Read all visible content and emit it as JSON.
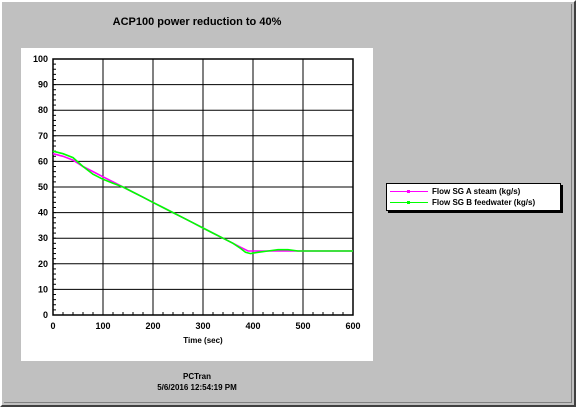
{
  "title": "ACP100 power reduction to 40%",
  "footer": {
    "line1": "PCTran",
    "line2": "5/6/2016 12:54:19 PM"
  },
  "chart_data": {
    "type": "line",
    "title": "ACP100 power reduction to 40%",
    "xlabel": "Time (sec)",
    "ylabel": "",
    "xlim": [
      0,
      600
    ],
    "ylim": [
      0,
      100
    ],
    "xticks": [
      0,
      100,
      200,
      300,
      400,
      500,
      600
    ],
    "yticks": [
      0,
      10,
      20,
      30,
      40,
      50,
      60,
      70,
      80,
      90,
      100
    ],
    "grid": true,
    "legend_position": "right",
    "series": [
      {
        "name": "Flow SG A steam (kg/s)",
        "color": "#ff00ff",
        "x": [
          0,
          20,
          40,
          60,
          80,
          100,
          120,
          140,
          160,
          180,
          200,
          220,
          240,
          260,
          280,
          300,
          320,
          340,
          360,
          375,
          390,
          405,
          420,
          440,
          460,
          480,
          500,
          520,
          540,
          560,
          580,
          600
        ],
        "values": [
          63,
          62,
          60.5,
          58,
          56,
          54,
          52,
          50,
          48,
          46,
          44,
          42,
          40,
          38,
          36,
          34,
          32,
          30,
          28,
          26.5,
          25,
          25,
          25,
          25,
          25,
          25,
          25,
          25,
          25,
          25,
          25,
          25
        ]
      },
      {
        "name": "Flow SG B feedwater (kg/s)",
        "color": "#00ff00",
        "x": [
          0,
          20,
          40,
          60,
          80,
          100,
          120,
          140,
          160,
          180,
          200,
          220,
          240,
          260,
          280,
          300,
          320,
          340,
          360,
          375,
          385,
          395,
          410,
          430,
          450,
          470,
          490,
          510,
          540,
          570,
          600
        ],
        "values": [
          64,
          63,
          61.5,
          58,
          55,
          53,
          51.5,
          50,
          48,
          46,
          44,
          42,
          40,
          38,
          36,
          34,
          32,
          30,
          28,
          26,
          24.5,
          24,
          24.5,
          25,
          25.5,
          25.5,
          25,
          25,
          25,
          25,
          25
        ]
      }
    ]
  }
}
